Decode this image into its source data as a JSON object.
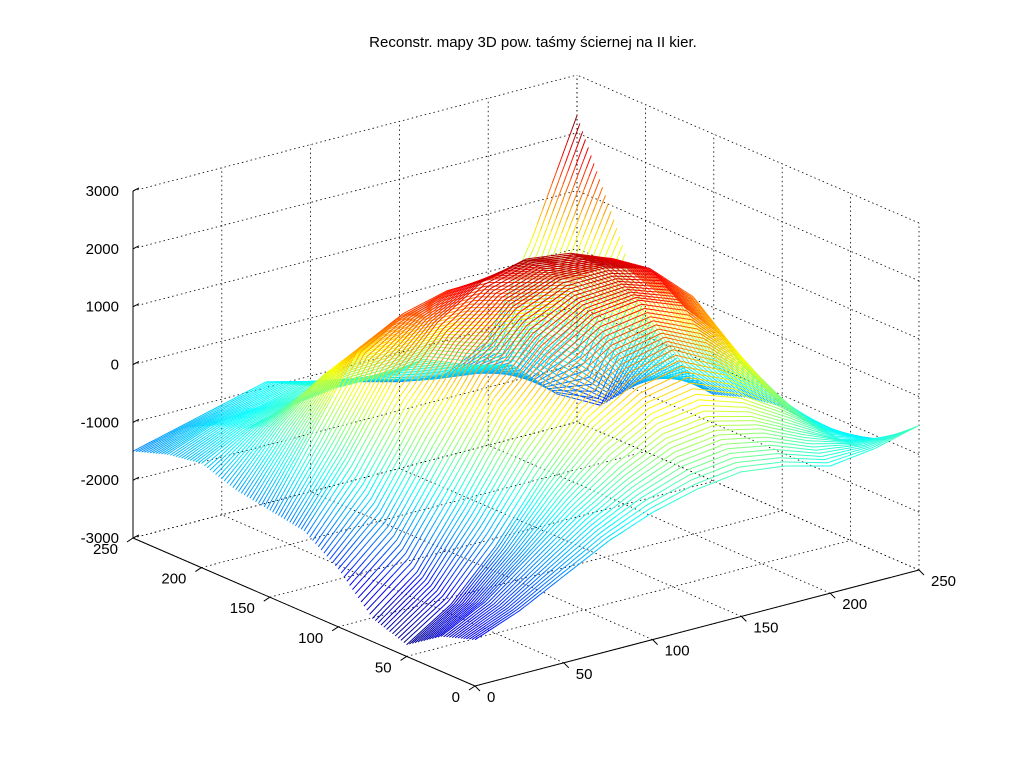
{
  "chart_data": {
    "type": "surface",
    "title": "Reconstr. mapy 3D pow. taśmy ściernej na II kier.",
    "xlabel": "",
    "ylabel": "",
    "zlabel": "",
    "xlim": [
      0,
      250
    ],
    "ylim": [
      0,
      250
    ],
    "zlim": [
      -3000,
      3000
    ],
    "x_ticks": [
      "0",
      "50",
      "100",
      "150",
      "200",
      "250"
    ],
    "y_ticks": [
      "0",
      "50",
      "100",
      "150",
      "200",
      "250"
    ],
    "z_ticks": [
      "3000",
      "2000",
      "1000",
      "0",
      "-1000",
      "-2000",
      "-3000"
    ],
    "grid": true,
    "colormap": "jet",
    "x": [
      0,
      25,
      50,
      75,
      100,
      125,
      150,
      175,
      200,
      225,
      250
    ],
    "y": [
      0,
      25,
      50,
      75,
      100,
      125,
      150,
      175,
      200,
      225,
      250
    ],
    "z": [
      [
        -2200,
        -1900,
        -1500,
        -1100,
        -800,
        -600,
        -500,
        -600,
        -800,
        -700,
        -500
      ],
      [
        -2400,
        -2000,
        -1400,
        -800,
        -300,
        100,
        200,
        0,
        -400,
        -800,
        -1000
      ],
      [
        -2800,
        -2300,
        -1500,
        -500,
        400,
        900,
        1100,
        700,
        100,
        -700,
        -1200
      ],
      [
        -2600,
        -2000,
        -900,
        300,
        1100,
        1600,
        1700,
        1400,
        600,
        -500,
        -1300
      ],
      [
        -2000,
        -1300,
        -100,
        1000,
        1700,
        2000,
        2000,
        1800,
        1100,
        -200,
        -1200
      ],
      [
        -1600,
        -600,
        600,
        1400,
        1900,
        2100,
        2000,
        1700,
        900,
        -400,
        -1300
      ],
      [
        -1500,
        -300,
        900,
        1300,
        1500,
        1500,
        1300,
        1100,
        300,
        -900,
        -1500
      ],
      [
        -1400,
        -500,
        200,
        400,
        500,
        500,
        300,
        200,
        -400,
        -1400,
        -1200
      ],
      [
        -1200,
        -800,
        -600,
        -500,
        -500,
        -400,
        -700,
        -900,
        -1600,
        -2000,
        -600
      ],
      [
        -1300,
        -1000,
        -900,
        -700,
        -800,
        -1000,
        -1200,
        -1300,
        -1500,
        -800,
        900
      ],
      [
        -1500,
        -1300,
        -1100,
        -900,
        -1100,
        -1300,
        -1500,
        -1600,
        -1200,
        400,
        2300
      ]
    ]
  }
}
